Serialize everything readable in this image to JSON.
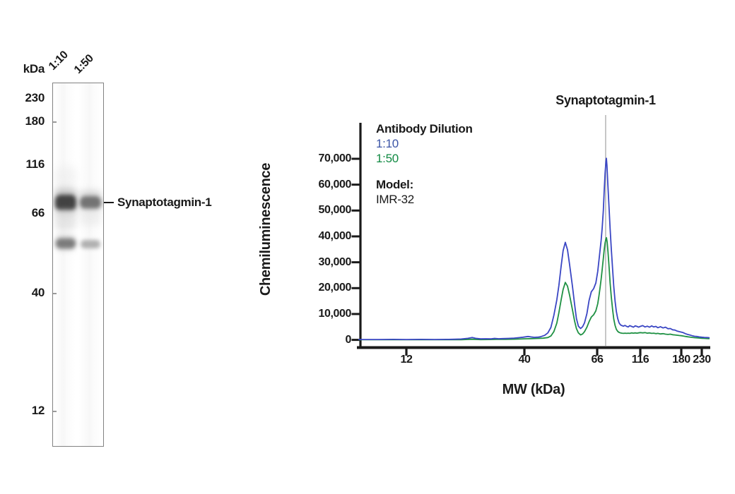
{
  "blot_panel": {
    "unit_label": "kDa",
    "lane_labels": [
      "1:10",
      "1:50"
    ],
    "markers": [
      "230",
      "180",
      "116",
      "66",
      "40",
      "12"
    ],
    "band_label": "Synaptotagmin-1"
  },
  "chart": {
    "title": "Synaptotagmin-1",
    "y_axis": {
      "label": "Chemiluminescence",
      "tick_labels": [
        "0",
        "10,000",
        "20,000",
        "30,000",
        "40,000",
        "50,000",
        "60,000",
        "70,000"
      ]
    },
    "x_axis": {
      "label": "MW (kDa)",
      "tick_labels": [
        "12",
        "40",
        "66",
        "116",
        "180",
        "230"
      ]
    },
    "legend": {
      "heading": "Antibody Dilution",
      "entries": [
        {
          "label": "1:10",
          "color": "#3b54a6"
        },
        {
          "label": "1:50",
          "color": "#118a43"
        }
      ],
      "model_heading": "Model:",
      "model_value": "IMR-32"
    }
  },
  "chart_data": {
    "type": "line",
    "title": "Synaptotagmin-1",
    "xlabel": "MW (kDa)",
    "ylabel": "Chemiluminescence",
    "x_scale": "nonlinear-log-mw",
    "x_ticks": [
      12,
      40,
      66,
      116,
      180,
      230
    ],
    "y_ticks": [
      0,
      10000,
      20000,
      30000,
      40000,
      50000,
      60000,
      70000
    ],
    "ylim": [
      0,
      75000
    ],
    "grid": false,
    "legend_position": "upper-left-inside",
    "annotation": {
      "label": "Synaptotagmin-1",
      "marker_mw": 73.7,
      "marker_color": "#b4b4b4"
    },
    "series": [
      {
        "name": "1:10",
        "color": "#3a46c4",
        "points": [
          [
            7.4,
            150
          ],
          [
            9,
            130
          ],
          [
            10.5,
            180
          ],
          [
            12,
            140
          ],
          [
            14,
            190
          ],
          [
            16,
            140
          ],
          [
            18,
            180
          ],
          [
            19.2,
            230
          ],
          [
            21,
            320
          ],
          [
            22.5,
            600
          ],
          [
            23.5,
            900
          ],
          [
            24.3,
            600
          ],
          [
            25.6,
            380
          ],
          [
            27,
            430
          ],
          [
            28.5,
            380
          ],
          [
            29.5,
            560
          ],
          [
            30.8,
            430
          ],
          [
            32,
            500
          ],
          [
            34,
            560
          ],
          [
            36,
            680
          ],
          [
            38,
            880
          ],
          [
            39.5,
            1050
          ],
          [
            41,
            1320
          ],
          [
            41.8,
            1150
          ],
          [
            42.8,
            980
          ],
          [
            44,
            1060
          ],
          [
            44.7,
            1200
          ],
          [
            46,
            1750
          ],
          [
            47,
            2700
          ],
          [
            48,
            4800
          ],
          [
            49,
            9500
          ],
          [
            50,
            15500
          ],
          [
            50.7,
            21000
          ],
          [
            51.5,
            28500
          ],
          [
            52.2,
            34500
          ],
          [
            53,
            37700
          ],
          [
            53.8,
            34800
          ],
          [
            54.6,
            29000
          ],
          [
            55.7,
            20500
          ],
          [
            56.5,
            13800
          ],
          [
            57.2,
            8300
          ],
          [
            58,
            5300
          ],
          [
            58.9,
            4400
          ],
          [
            59.7,
            5100
          ],
          [
            60.5,
            6600
          ],
          [
            61.5,
            10200
          ],
          [
            62.4,
            15200
          ],
          [
            63.4,
            18600
          ],
          [
            64.4,
            19800
          ],
          [
            65.4,
            22000
          ],
          [
            66.5,
            26500
          ],
          [
            67.5,
            30500
          ],
          [
            68.5,
            34500
          ],
          [
            69.5,
            38500
          ],
          [
            70.4,
            43000
          ],
          [
            71.5,
            50000
          ],
          [
            72.3,
            57500
          ],
          [
            73.2,
            64500
          ],
          [
            74,
            69000
          ],
          [
            74.4,
            70200
          ],
          [
            75,
            67500
          ],
          [
            75.9,
            60000
          ],
          [
            77.2,
            50000
          ],
          [
            78.2,
            43000
          ],
          [
            79.4,
            35000
          ],
          [
            80.8,
            27000
          ],
          [
            82,
            20500
          ],
          [
            83.4,
            15000
          ],
          [
            84.8,
            11000
          ],
          [
            86.3,
            8300
          ],
          [
            87.8,
            6600
          ],
          [
            89.5,
            5800
          ],
          [
            91.2,
            5500
          ],
          [
            93,
            5300
          ],
          [
            95,
            5600
          ],
          [
            97,
            5200
          ],
          [
            99,
            5000
          ],
          [
            101,
            5500
          ],
          [
            103.5,
            5200
          ],
          [
            106,
            4900
          ],
          [
            108.5,
            5400
          ],
          [
            111,
            5200
          ],
          [
            113.5,
            4900
          ],
          [
            116,
            5200
          ],
          [
            119,
            5500
          ],
          [
            122,
            5000
          ],
          [
            125,
            5300
          ],
          [
            128,
            4900
          ],
          [
            131,
            5400
          ],
          [
            134,
            5000
          ],
          [
            137,
            5200
          ],
          [
            140,
            4700
          ],
          [
            144,
            5100
          ],
          [
            148,
            4600
          ],
          [
            152,
            4900
          ],
          [
            156,
            4300
          ],
          [
            160,
            4400
          ],
          [
            164,
            3900
          ],
          [
            168,
            3800
          ],
          [
            172,
            3400
          ],
          [
            176,
            3200
          ],
          [
            180,
            3000
          ],
          [
            184,
            2800
          ],
          [
            189,
            2400
          ],
          [
            194,
            2100
          ],
          [
            199,
            1900
          ],
          [
            205,
            1600
          ],
          [
            211,
            1400
          ],
          [
            217,
            1300
          ],
          [
            223,
            1150
          ],
          [
            230,
            1050
          ],
          [
            237,
            950
          ],
          [
            244,
            900
          ],
          [
            251,
            850
          ]
        ]
      },
      {
        "name": "1:50",
        "color": "#1f9143",
        "points": [
          [
            7.4,
            60
          ],
          [
            10,
            50
          ],
          [
            12,
            60
          ],
          [
            15,
            70
          ],
          [
            18,
            60
          ],
          [
            21,
            90
          ],
          [
            23.5,
            250
          ],
          [
            25.6,
            120
          ],
          [
            28,
            130
          ],
          [
            30,
            180
          ],
          [
            33,
            200
          ],
          [
            36,
            260
          ],
          [
            38,
            330
          ],
          [
            40,
            420
          ],
          [
            42,
            480
          ],
          [
            44,
            560
          ],
          [
            45.5,
            650
          ],
          [
            47,
            900
          ],
          [
            48,
            1500
          ],
          [
            49,
            3200
          ],
          [
            50,
            6500
          ],
          [
            50.7,
            10500
          ],
          [
            51.5,
            15500
          ],
          [
            52.2,
            19500
          ],
          [
            53,
            22200
          ],
          [
            53.8,
            20800
          ],
          [
            54.6,
            17200
          ],
          [
            55.7,
            11500
          ],
          [
            56.5,
            7300
          ],
          [
            57.2,
            4400
          ],
          [
            58,
            2700
          ],
          [
            58.9,
            1900
          ],
          [
            59.7,
            2300
          ],
          [
            60.5,
            3200
          ],
          [
            61.5,
            4900
          ],
          [
            62.4,
            7000
          ],
          [
            63.4,
            8800
          ],
          [
            64.4,
            9700
          ],
          [
            65.4,
            11200
          ],
          [
            66.5,
            14000
          ],
          [
            67.5,
            16800
          ],
          [
            68.5,
            20000
          ],
          [
            69.5,
            23500
          ],
          [
            70.4,
            27000
          ],
          [
            71.5,
            31500
          ],
          [
            72.3,
            34800
          ],
          [
            73.2,
            37500
          ],
          [
            74,
            39000
          ],
          [
            74.5,
            39500
          ],
          [
            75.2,
            37800
          ],
          [
            76,
            34000
          ],
          [
            77.2,
            27500
          ],
          [
            78.2,
            22000
          ],
          [
            79.4,
            16500
          ],
          [
            80.8,
            11500
          ],
          [
            82,
            8000
          ],
          [
            83.4,
            5600
          ],
          [
            84.8,
            4100
          ],
          [
            86.3,
            3300
          ],
          [
            87.8,
            2900
          ],
          [
            89.5,
            2700
          ],
          [
            91.2,
            2600
          ],
          [
            93,
            2500
          ],
          [
            95,
            2600
          ],
          [
            97,
            2500
          ],
          [
            99,
            2600
          ],
          [
            101,
            2500
          ],
          [
            103.5,
            2700
          ],
          [
            106,
            2600
          ],
          [
            108.5,
            2700
          ],
          [
            111,
            2600
          ],
          [
            113.5,
            2700
          ],
          [
            116,
            2800
          ],
          [
            119,
            2700
          ],
          [
            122,
            2800
          ],
          [
            125,
            2600
          ],
          [
            128,
            2700
          ],
          [
            131,
            2500
          ],
          [
            134,
            2600
          ],
          [
            137,
            2400
          ],
          [
            140,
            2500
          ],
          [
            144,
            2300
          ],
          [
            148,
            2400
          ],
          [
            152,
            2200
          ],
          [
            156,
            2100
          ],
          [
            160,
            2200
          ],
          [
            164,
            2000
          ],
          [
            168,
            1900
          ],
          [
            172,
            1800
          ],
          [
            176,
            1700
          ],
          [
            180,
            1600
          ],
          [
            184,
            1500
          ],
          [
            189,
            1350
          ],
          [
            194,
            1200
          ],
          [
            199,
            1100
          ],
          [
            205,
            950
          ],
          [
            211,
            850
          ],
          [
            217,
            780
          ],
          [
            223,
            700
          ],
          [
            230,
            640
          ],
          [
            237,
            580
          ],
          [
            244,
            530
          ],
          [
            251,
            500
          ]
        ]
      }
    ]
  }
}
